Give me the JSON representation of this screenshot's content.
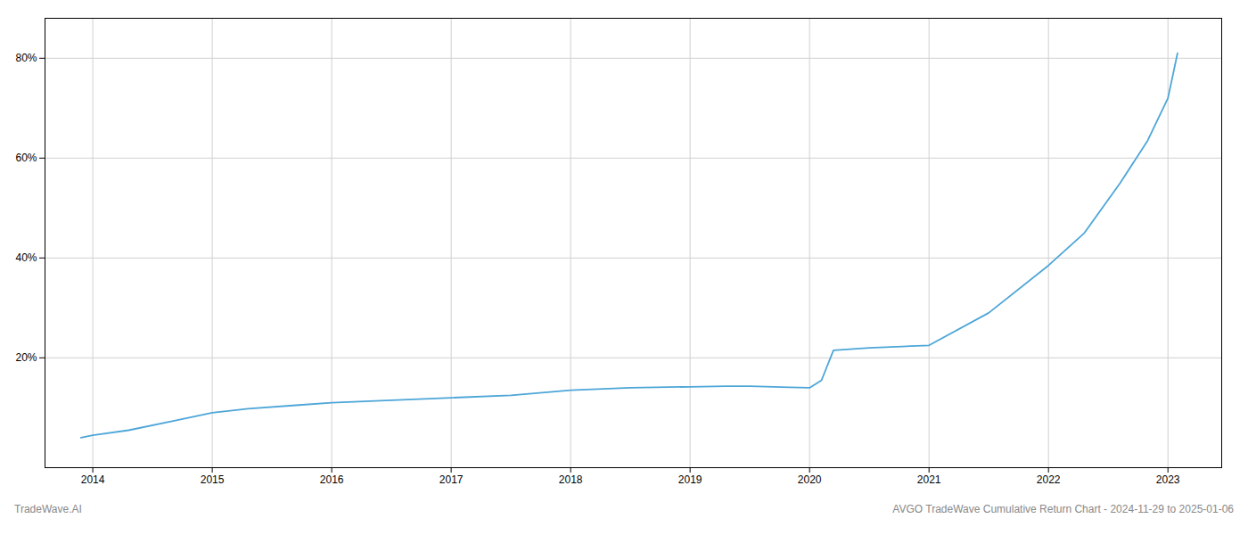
{
  "chart_data": {
    "type": "line",
    "x": [
      2013.9,
      2014.0,
      2014.3,
      2014.7,
      2015.0,
      2015.3,
      2015.7,
      2016.0,
      2016.5,
      2017.0,
      2017.5,
      2018.0,
      2018.5,
      2019.0,
      2019.3,
      2019.5,
      2019.7,
      2019.83,
      2020.0,
      2020.1,
      2020.2,
      2020.5,
      2021.0,
      2021.5,
      2022.0,
      2022.3,
      2022.6,
      2022.83,
      2023.0,
      2023.08
    ],
    "values": [
      4.0,
      4.5,
      5.5,
      7.5,
      9.0,
      9.8,
      10.5,
      11.0,
      11.5,
      12.0,
      12.5,
      13.5,
      14.0,
      14.2,
      14.3,
      14.3,
      14.2,
      14.1,
      14.0,
      15.5,
      21.5,
      22.0,
      22.5,
      29.0,
      38.5,
      45.0,
      55.0,
      63.5,
      72.0,
      81.0
    ],
    "color": "#4da6d8",
    "xlim": [
      2013.6,
      2023.45
    ],
    "xticks": [
      2014,
      2015,
      2016,
      2017,
      2018,
      2019,
      2020,
      2021,
      2022,
      2023
    ],
    "ylim": [
      -2,
      88
    ],
    "yticks": [
      {
        "value": 20,
        "label": "20%"
      },
      {
        "value": 40,
        "label": "40%"
      },
      {
        "value": 60,
        "label": "60%"
      },
      {
        "value": 80,
        "label": "80%"
      }
    ],
    "grid": true,
    "annotations": [
      "TradeWave.AI",
      "AVGO TradeWave Cumulative Return Chart - 2024-11-29 to 2025-01-06"
    ]
  }
}
